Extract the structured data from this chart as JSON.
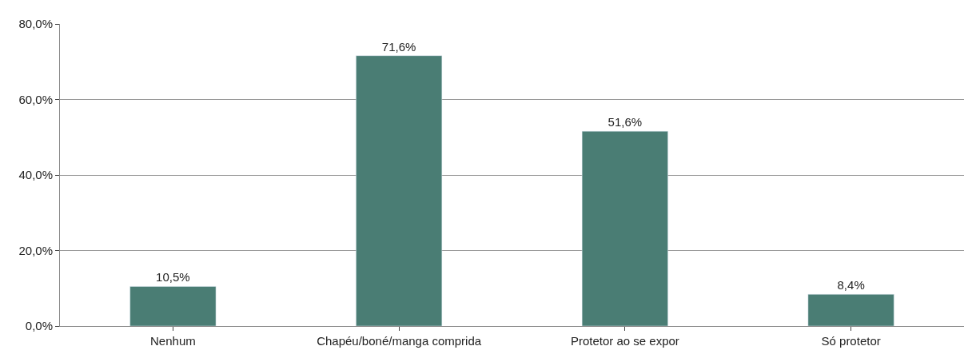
{
  "chart_data": {
    "type": "bar",
    "categories": [
      "Nenhum",
      "Chapéu/boné/manga comprida",
      "Protetor ao se expor",
      "Só protetor"
    ],
    "values": [
      10.5,
      71.6,
      51.6,
      8.4
    ],
    "value_labels": [
      "10,5%",
      "71,6%",
      "51,6%",
      "8,4%"
    ],
    "color": "#4a7d74",
    "ylim": [
      0,
      80
    ],
    "yticks": [
      {
        "value": 0,
        "label": "0,0%"
      },
      {
        "value": 20,
        "label": "20,0%"
      },
      {
        "value": 40,
        "label": "40,0%"
      },
      {
        "value": 60,
        "label": "60,0%"
      },
      {
        "value": 80,
        "label": "80,0%"
      }
    ],
    "grid": "y"
  }
}
